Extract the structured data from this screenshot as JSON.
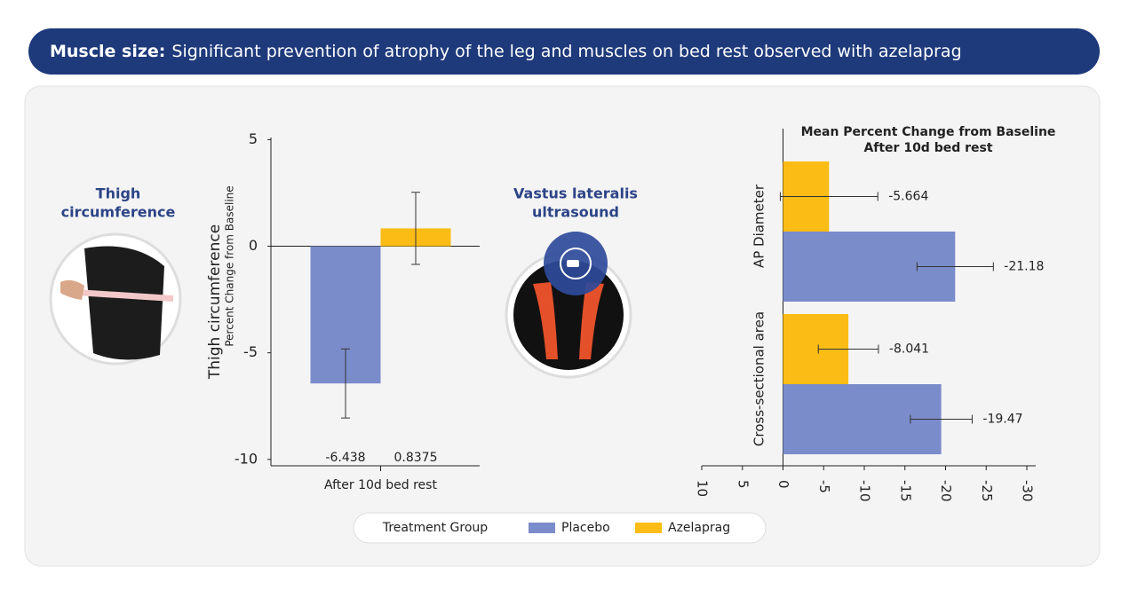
{
  "header": {
    "lead": "Muscle size:",
    "text": "Significant prevention of atrophy of the leg and muscles on bed rest observed with azelaprag"
  },
  "panels": [
    {
      "label": [
        "Thigh",
        "circumference"
      ]
    },
    {
      "label": [
        "Vastus lateralis",
        "ultrasound"
      ]
    }
  ],
  "legend": {
    "title": "Treatment Group"
  },
  "chart_data": [
    {
      "type": "bar",
      "ylabel": "Thigh circumference",
      "ylabel_sub": "Percent Change from Baseline",
      "categories": [
        "After 10d bed rest"
      ],
      "series": [
        {
          "name": "Placebo",
          "color": "#7b8ccb",
          "values": [
            -6.438
          ],
          "errors": [
            1.62
          ]
        },
        {
          "name": "Azelaprag",
          "color": "#fbbc15",
          "values": [
            0.8375
          ],
          "errors": [
            1.69
          ]
        }
      ],
      "ylim": [
        -10.3,
        5.1
      ],
      "yticks": [
        -10,
        -5,
        0,
        5
      ]
    },
    {
      "type": "barh",
      "title": [
        "Mean Percent Change from Baseline",
        "After 10d bed rest"
      ],
      "categories": [
        "AP Diameter",
        "Cross-sectional area"
      ],
      "series": [
        {
          "name": "Placebo",
          "color": "#7b8ccb",
          "values": [
            -21.18,
            -19.47
          ],
          "errors": [
            4.7,
            3.8
          ]
        },
        {
          "name": "Azelaprag",
          "color": "#fbbc15",
          "values": [
            -5.664,
            -8.041
          ],
          "errors": [
            6.0,
            3.7
          ]
        }
      ],
      "xlim": [
        10,
        -30
      ],
      "xticks": [
        10,
        5,
        0,
        -5,
        -10,
        -15,
        -20,
        -25,
        -30
      ]
    }
  ]
}
